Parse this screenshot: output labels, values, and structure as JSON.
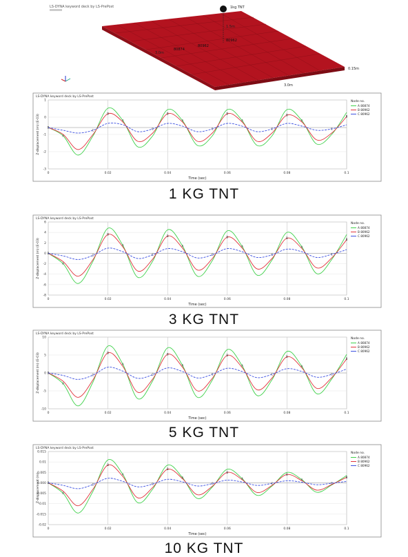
{
  "model": {
    "title": "LS-DYNA keyword deck by LS-PrePost",
    "charge_label": "1kg TNT",
    "labels": {
      "height": "1.5m",
      "width": "3.0m",
      "length": "3.0m",
      "thickness": "0.15m"
    },
    "node_labels": [
      "80874",
      "80962",
      "80962"
    ]
  },
  "panels": [
    {
      "caption": "1 KG TNT"
    },
    {
      "caption": "3 KG TNT"
    },
    {
      "caption": "5 KG TNT"
    },
    {
      "caption": "10 KG TNT"
    }
  ],
  "colors": {
    "green": "#3fd14a",
    "red": "#e0323a",
    "blue": "#3b4fe0",
    "model": "#b3131f"
  },
  "chart_data": [
    {
      "type": "line",
      "title": "LS-DYNA keyword deck by LS-PrePost",
      "xlabel": "Time (sec)",
      "ylabel": "Z-displacement (m) (E-03)",
      "legend_title": "Node no.",
      "xlim": [
        0,
        0.1
      ],
      "ylim": [
        -3,
        2
      ],
      "xticks": [
        "0",
        "0.02",
        "0.04",
        "0.06",
        "0.08",
        "0.1"
      ],
      "yticks": [
        "1",
        "0",
        "-1",
        "-2",
        "-3"
      ],
      "x": [
        0,
        0.005,
        0.01,
        0.015,
        0.02,
        0.025,
        0.03,
        0.035,
        0.04,
        0.045,
        0.05,
        0.055,
        0.06,
        0.065,
        0.07,
        0.075,
        0.08,
        0.085,
        0.09,
        0.095,
        0.1
      ],
      "series": [
        {
          "name": "A  80874",
          "color": "#3fd14a",
          "values": [
            0,
            -0.6,
            -2,
            -0.6,
            1.4,
            0.5,
            -1.4,
            -0.6,
            1.3,
            0.5,
            -1.3,
            -0.6,
            1.3,
            0.5,
            -1.3,
            -0.6,
            1.3,
            0.5,
            -1.2,
            -0.5,
            1.1
          ]
        },
        {
          "name": "B  80962",
          "color": "#e0323a",
          "values": [
            0,
            -0.5,
            -1.6,
            -0.5,
            1.0,
            0.4,
            -1.0,
            -0.4,
            1.0,
            0.4,
            -1.0,
            -0.4,
            1.0,
            0.4,
            -1.0,
            -0.4,
            0.9,
            0.4,
            -0.9,
            -0.4,
            0.8
          ]
        },
        {
          "name": "C  80962",
          "color": "#3b4fe0",
          "values": [
            0,
            -0.2,
            -0.4,
            -0.2,
            0.3,
            0.2,
            -0.3,
            -0.1,
            0.3,
            0.1,
            -0.3,
            -0.1,
            0.3,
            0.1,
            -0.3,
            -0.1,
            0.3,
            0.1,
            -0.2,
            -0.1,
            0.2
          ]
        }
      ]
    },
    {
      "type": "line",
      "title": "LS-DYNA keyword deck by LS-PrePost",
      "xlabel": "Time (sec)",
      "ylabel": "Z-displacement (m) (E-03)",
      "legend_title": "Node no.",
      "xlim": [
        0,
        0.1
      ],
      "ylim": [
        -8,
        6
      ],
      "xticks": [
        "0",
        "0.02",
        "0.04",
        "0.06",
        "0.08",
        "0.1"
      ],
      "yticks": [
        "6",
        "4",
        "2",
        "0",
        "-2",
        "-4",
        "-6",
        "-8"
      ],
      "x": [
        0,
        0.005,
        0.01,
        0.015,
        0.02,
        0.025,
        0.03,
        0.035,
        0.04,
        0.045,
        0.05,
        0.055,
        0.06,
        0.065,
        0.07,
        0.075,
        0.08,
        0.085,
        0.09,
        0.095,
        0.1
      ],
      "series": [
        {
          "name": "A  80874",
          "color": "#3fd14a",
          "values": [
            0,
            -2,
            -5.8,
            -1.5,
            4.8,
            1.5,
            -4.6,
            -1.5,
            4.5,
            1.4,
            -4.4,
            -1.4,
            4.3,
            1.3,
            -4.2,
            -1.3,
            4.0,
            1.2,
            -3.9,
            -1.2,
            3.6
          ]
        },
        {
          "name": "B  80962",
          "color": "#e0323a",
          "values": [
            0,
            -1.6,
            -4.4,
            -1.2,
            3.6,
            1.2,
            -3.4,
            -1.1,
            3.3,
            1.0,
            -3.2,
            -1.0,
            3.1,
            1.0,
            -3.0,
            -1.0,
            2.9,
            0.9,
            -2.8,
            -0.9,
            2.6
          ]
        },
        {
          "name": "C  80962",
          "color": "#3b4fe0",
          "values": [
            0,
            -0.5,
            -1.2,
            -0.4,
            1.0,
            0.3,
            -1.0,
            -0.3,
            0.9,
            0.3,
            -0.9,
            -0.3,
            0.9,
            0.3,
            -0.8,
            -0.3,
            0.8,
            0.3,
            -0.8,
            -0.2,
            0.7
          ]
        }
      ]
    },
    {
      "type": "line",
      "title": "LS-DYNA keyword deck by LS-PrePost",
      "xlabel": "Time (sec)",
      "ylabel": "Z-displacement (m) (E-03)",
      "legend_title": "Node no.",
      "xlim": [
        0,
        0.1
      ],
      "ylim": [
        -10,
        10
      ],
      "xticks": [
        "0",
        "0.02",
        "0.04",
        "0.06",
        "0.08",
        "0.1"
      ],
      "yticks": [
        "10",
        "5",
        "0",
        "-5",
        "-10"
      ],
      "x": [
        0,
        0.005,
        0.01,
        0.015,
        0.02,
        0.025,
        0.03,
        0.035,
        0.04,
        0.045,
        0.05,
        0.055,
        0.06,
        0.065,
        0.07,
        0.075,
        0.08,
        0.085,
        0.09,
        0.095,
        0.1
      ],
      "series": [
        {
          "name": "A  80874",
          "color": "#3fd14a",
          "values": [
            0,
            -3,
            -9.2,
            -2.5,
            7.5,
            2.4,
            -7.2,
            -2.2,
            7.0,
            2.1,
            -6.8,
            -2.0,
            6.5,
            2.0,
            -6.3,
            -1.9,
            6.0,
            1.8,
            -5.8,
            -1.7,
            5.2
          ]
        },
        {
          "name": "B  80962",
          "color": "#e0323a",
          "values": [
            0,
            -2.3,
            -6.8,
            -1.9,
            5.6,
            1.8,
            -5.4,
            -1.7,
            5.2,
            1.6,
            -5.0,
            -1.5,
            4.9,
            1.5,
            -4.7,
            -1.4,
            4.5,
            1.4,
            -4.3,
            -1.3,
            3.9
          ]
        },
        {
          "name": "C  80962",
          "color": "#3b4fe0",
          "values": [
            0,
            -0.7,
            -1.8,
            -0.6,
            1.6,
            0.5,
            -1.5,
            -0.5,
            1.4,
            0.4,
            -1.4,
            -0.4,
            1.3,
            0.4,
            -1.3,
            -0.4,
            1.2,
            0.4,
            -1.2,
            -0.4,
            1.1
          ]
        }
      ]
    },
    {
      "type": "line",
      "title": "LS-DYNA keyword deck by LS-PrePost",
      "xlabel": "Time (sec)",
      "ylabel": "Z-displacement (m)",
      "legend_title": "Node no.",
      "xlim": [
        0,
        0.1
      ],
      "ylim": [
        -0.02,
        0.015
      ],
      "xticks": [
        "0",
        "0.02",
        "0.04",
        "0.06",
        "0.08",
        "0.1"
      ],
      "yticks": [
        "0.015",
        "0.01",
        "0.005",
        "0.000",
        "-0.005",
        "-0.01",
        "-0.015",
        "-0.02"
      ],
      "x": [
        0,
        0.005,
        0.01,
        0.015,
        0.02,
        0.025,
        0.03,
        0.035,
        0.04,
        0.045,
        0.05,
        0.055,
        0.06,
        0.065,
        0.07,
        0.075,
        0.08,
        0.085,
        0.09,
        0.095,
        0.1
      ],
      "series": [
        {
          "name": "A  80874",
          "color": "#3fd14a",
          "values": [
            0,
            -0.005,
            -0.0145,
            -0.004,
            0.011,
            0.004,
            -0.0095,
            -0.003,
            0.0085,
            0.0025,
            -0.0075,
            -0.002,
            0.0065,
            0.002,
            -0.006,
            -0.0015,
            0.005,
            0.0015,
            -0.0045,
            -0.001,
            0.0035
          ]
        },
        {
          "name": "B  80962",
          "color": "#e0323a",
          "values": [
            0,
            -0.004,
            -0.011,
            -0.003,
            0.0085,
            0.003,
            -0.0072,
            -0.0022,
            0.0065,
            0.002,
            -0.0057,
            -0.0016,
            0.005,
            0.0015,
            -0.0046,
            -0.0012,
            0.004,
            0.001,
            -0.0035,
            -0.0008,
            0.0027
          ]
        },
        {
          "name": "C  80962",
          "color": "#3b4fe0",
          "values": [
            0,
            -0.0012,
            -0.0028,
            -0.0008,
            0.0022,
            0.0007,
            -0.0019,
            -0.0006,
            0.0017,
            0.0005,
            -0.0015,
            -0.0004,
            0.0013,
            0.0004,
            -0.0012,
            -0.0003,
            0.001,
            0.0003,
            -0.0009,
            -0.0002,
            0.0007
          ]
        }
      ]
    }
  ]
}
